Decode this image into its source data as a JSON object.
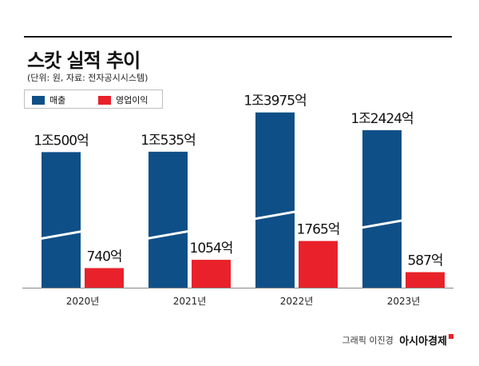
{
  "title": "스캇 실적 추이",
  "subtitle": "(단위: 원, 자료: 전자공시시스템)",
  "legend": {
    "revenue_label": "매출",
    "op_label": "영업이익",
    "revenue_color": "#0f4f87",
    "op_color": "#e8212a"
  },
  "credit": {
    "author": "그래픽 이진경",
    "brand": "아시아경제"
  },
  "chart_data": {
    "type": "bar",
    "title": "스캇 실적 추이",
    "subtitle": "(단위: 원, 자료: 전자공시시스템)",
    "categories": [
      "2020년",
      "2021년",
      "2022년",
      "2023년"
    ],
    "series": [
      {
        "name": "매출",
        "color": "#0f4f87",
        "values": [
          10500,
          10535,
          13975,
          12424
        ],
        "labels": [
          "1조500억",
          "1조535억",
          "1조3975억",
          "1조2424억"
        ]
      },
      {
        "name": "영업이익",
        "color": "#e8212a",
        "values": [
          740,
          1054,
          1765,
          587
        ],
        "labels": [
          "740억",
          "1054억",
          "1765억",
          "587억"
        ]
      }
    ],
    "value_unit": "억원",
    "axis_break": true,
    "legend_position": "top-left",
    "grid": false
  }
}
